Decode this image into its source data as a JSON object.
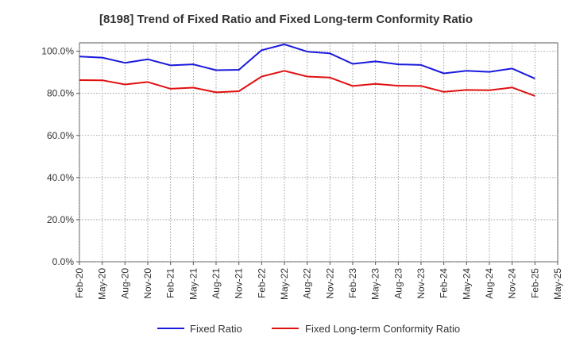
{
  "chart_data": {
    "type": "line",
    "title": "[8198]  Trend of Fixed Ratio and Fixed Long-term Conformity Ratio",
    "xlabel": "",
    "ylabel": "",
    "ylim": [
      0,
      104
    ],
    "y_ticks": [
      "0.0%",
      "20.0%",
      "40.0%",
      "60.0%",
      "80.0%",
      "100.0%"
    ],
    "y_tick_values": [
      0,
      20,
      40,
      60,
      80,
      100
    ],
    "x_ticks": [
      "Feb-20",
      "May-20",
      "Aug-20",
      "Nov-20",
      "Feb-21",
      "May-21",
      "Aug-21",
      "Nov-21",
      "Feb-22",
      "May-22",
      "Aug-22",
      "Nov-22",
      "Feb-23",
      "May-23",
      "Aug-23",
      "Nov-23",
      "Feb-24",
      "May-24",
      "Aug-24",
      "Nov-24",
      "Feb-25",
      "May-25"
    ],
    "categories": [
      "Feb-20",
      "May-20",
      "Aug-20",
      "Nov-20",
      "Feb-21",
      "May-21",
      "Aug-21",
      "Nov-21",
      "Feb-22",
      "May-22",
      "Aug-22",
      "Nov-22",
      "Feb-23",
      "May-23",
      "Aug-23",
      "Nov-23",
      "Feb-24",
      "May-24",
      "Aug-24",
      "Nov-24",
      "Feb-25"
    ],
    "grid": true,
    "legend_position": "bottom",
    "series": [
      {
        "name": "Fixed Ratio",
        "color": "#1a1adc",
        "values": [
          97.5,
          97.0,
          94.5,
          96.2,
          93.3,
          93.8,
          91.0,
          91.2,
          100.5,
          103.3,
          99.8,
          99.0,
          94.0,
          95.2,
          93.8,
          93.5,
          89.5,
          90.7,
          90.2,
          91.8,
          87.0
        ]
      },
      {
        "name": "Fixed Long-term Conformity Ratio",
        "color": "#e01010",
        "values": [
          86.3,
          86.2,
          84.2,
          85.4,
          82.2,
          82.7,
          80.5,
          81.0,
          88.0,
          90.7,
          88.0,
          87.5,
          83.5,
          84.5,
          83.6,
          83.5,
          80.7,
          81.6,
          81.5,
          82.8,
          78.8
        ]
      }
    ]
  }
}
